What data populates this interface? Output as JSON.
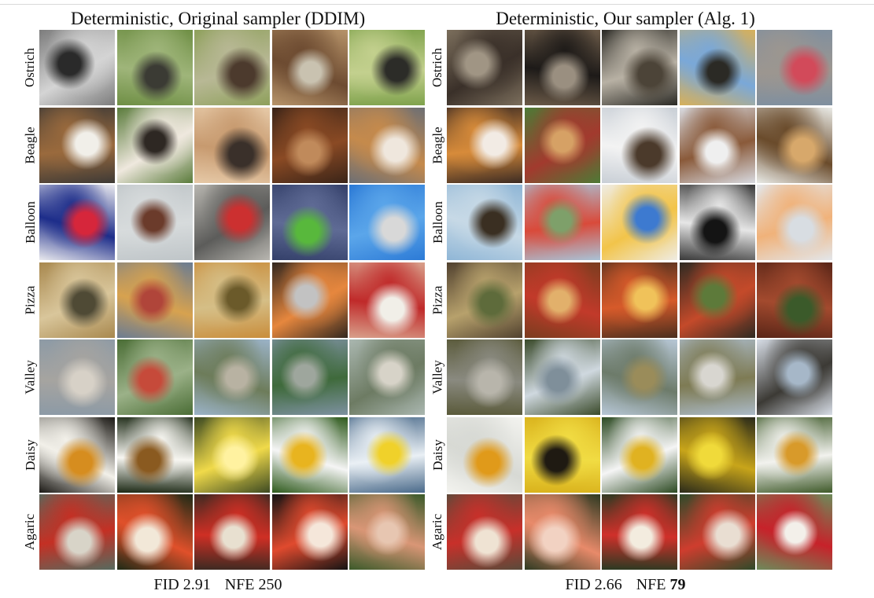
{
  "panels": [
    {
      "title": "Deterministic, Original sampler (DDIM)",
      "fid_label": "FID 2.91",
      "nfe_prefix": "NFE",
      "nfe_value": "250",
      "nfe_bold": false,
      "rows": [
        {
          "label": "Ostrich",
          "tiles": [
            [
              "#7c7c7c",
              "#d4d4d4",
              "#2a2a2a"
            ],
            [
              "#6f8f45",
              "#9fb57a",
              "#3b3b34"
            ],
            [
              "#8ea05b",
              "#b8b895",
              "#4c3a2d"
            ],
            [
              "#b7946a",
              "#6d4b31",
              "#c9c2b0"
            ],
            [
              "#7fa24c",
              "#c3d08e",
              "#2c2c28"
            ]
          ]
        },
        {
          "label": "Beagle",
          "tiles": [
            [
              "#3e3a36",
              "#9a6a3d",
              "#f1efe9"
            ],
            [
              "#5a7b3b",
              "#efe8de",
              "#2e2823"
            ],
            [
              "#e6c9a7",
              "#c79a6f",
              "#3a302a"
            ],
            [
              "#3a2418",
              "#8a4a24",
              "#c08a5b"
            ],
            [
              "#6d6f74",
              "#c58a4c",
              "#efe7dd"
            ]
          ]
        },
        {
          "label": "Balloon",
          "tiles": [
            [
              "#e9e9ee",
              "#1d2d8a",
              "#d6263b"
            ],
            [
              "#bfc5c8",
              "#d7dbdc",
              "#6b3b2b"
            ],
            [
              "#b8b6b0",
              "#5c5c5a",
              "#cc3030"
            ],
            [
              "#34406a",
              "#5f6b95",
              "#58b83c"
            ],
            [
              "#2c7ad6",
              "#5ba6ea",
              "#d8d8d8"
            ]
          ]
        },
        {
          "label": "Pizza",
          "tiles": [
            [
              "#a8884e",
              "#d9c69b",
              "#4f4a35"
            ],
            [
              "#6b7c92",
              "#d7a24f",
              "#b0453a"
            ],
            [
              "#c98d3b",
              "#d5be86",
              "#6b5a2a"
            ],
            [
              "#33271f",
              "#e6873e",
              "#c2c2c2"
            ],
            [
              "#d8a08b",
              "#c02a2a",
              "#f1efe8"
            ]
          ]
        },
        {
          "label": "Valley",
          "tiles": [
            [
              "#8c9aa6",
              "#a6a4a0",
              "#d7d1c7"
            ],
            [
              "#4a6d35",
              "#9bb188",
              "#c64a3a"
            ],
            [
              "#9bb3c8",
              "#6d7c5a",
              "#b8b2a2"
            ],
            [
              "#7d91a0",
              "#3f6a3b",
              "#9ea69d"
            ],
            [
              "#aab7b0",
              "#6d7b63",
              "#d7d3c8"
            ]
          ]
        },
        {
          "label": "Daisy",
          "tiles": [
            [
              "#1b1915",
              "#f2f0e9",
              "#d68d1f"
            ],
            [
              "#1d2a16",
              "#f7f6f1",
              "#8a5a20"
            ],
            [
              "#3d4a22",
              "#f0da4a",
              "#fff2a0"
            ],
            [
              "#2e5a1c",
              "#f5f5f5",
              "#e8b41f"
            ],
            [
              "#4a6a8a",
              "#eaf0f5",
              "#f0d12a"
            ]
          ]
        },
        {
          "label": "Agaric",
          "tiles": [
            [
              "#566a5e",
              "#c43024",
              "#d8d4c8"
            ],
            [
              "#1d2a16",
              "#e0502a",
              "#f2e8d8"
            ],
            [
              "#3b2a22",
              "#cf2f24",
              "#e8e0d0"
            ],
            [
              "#141414",
              "#e04a2e",
              "#f5e7da"
            ],
            [
              "#3b5a2a",
              "#d99676",
              "#e7c6b1"
            ]
          ]
        }
      ]
    },
    {
      "title": "Deterministic, Our sampler (Alg. 1)",
      "fid_label": "FID 2.66",
      "nfe_prefix": "NFE",
      "nfe_value": "79",
      "nfe_bold": true,
      "rows": [
        {
          "label": "Ostrich",
          "tiles": [
            [
              "#7b6e5c",
              "#3a3029",
              "#a09584"
            ],
            [
              "#6b5a48",
              "#1d1a18",
              "#9a8f80"
            ],
            [
              "#2b2a25",
              "#b8b1a4",
              "#4c4438"
            ],
            [
              "#d7b05a",
              "#7aa8d8",
              "#2b2a25"
            ],
            [
              "#7f8f9f",
              "#9c9690",
              "#d24a5a"
            ]
          ]
        },
        {
          "label": "Beagle",
          "tiles": [
            [
              "#3c2b23",
              "#d78b3a",
              "#f2ebe4"
            ],
            [
              "#4d7a36",
              "#a23a2e",
              "#d6a165"
            ],
            [
              "#c9cfd6",
              "#f3f3f3",
              "#4b3a2b"
            ],
            [
              "#d8dae0",
              "#8a5a3a",
              "#efefef"
            ],
            [
              "#e9eae6",
              "#6a4b2b",
              "#d7a86b"
            ]
          ]
        },
        {
          "label": "Balloon",
          "tiles": [
            [
              "#8fb6d6",
              "#c7d9e6",
              "#3a2f22"
            ],
            [
              "#a9c2d6",
              "#d94a3a",
              "#7ea06a"
            ],
            [
              "#efece3",
              "#f2c44a",
              "#3d7ad0"
            ],
            [
              "#3a3a3a",
              "#e6e6e6",
              "#141414"
            ],
            [
              "#e3e6ea",
              "#f0b27a",
              "#d8dde2"
            ]
          ]
        },
        {
          "label": "Pizza",
          "tiles": [
            [
              "#51412f",
              "#b7a16c",
              "#5e6b3b"
            ],
            [
              "#7b3d1f",
              "#c23a2a",
              "#e2b06b"
            ],
            [
              "#4b2e1e",
              "#d65a2a",
              "#f0c25a"
            ],
            [
              "#2f2a22",
              "#c44a2a",
              "#5d7a3a"
            ],
            [
              "#5a2618",
              "#a34a2e",
              "#3b5a2a"
            ]
          ]
        },
        {
          "label": "Valley",
          "tiles": [
            [
              "#5a5a3a",
              "#8a8a80",
              "#b8b5ab"
            ],
            [
              "#3a4a2a",
              "#cfd8df",
              "#7f8f9a"
            ],
            [
              "#b7c7d6",
              "#6d7b6a",
              "#9a8c5a"
            ],
            [
              "#aab9c6",
              "#7e7b54",
              "#d8d6d0"
            ],
            [
              "#d7dde6",
              "#3c3a35",
              "#a6b7c8"
            ]
          ]
        },
        {
          "label": "Daisy",
          "tiles": [
            [
              "#f3f3ef",
              "#d7d9d4",
              "#e09a1a"
            ],
            [
              "#d9b21c",
              "#f1dc43",
              "#1f1a12"
            ],
            [
              "#2c4a22",
              "#f5f5f5",
              "#e0b221"
            ],
            [
              "#2a2a1a",
              "#c8a51a",
              "#f0da3a"
            ],
            [
              "#3f5a2a",
              "#f2f2ee",
              "#d89a2a"
            ]
          ]
        },
        {
          "label": "Agaric",
          "tiles": [
            [
              "#5a4a3a",
              "#c8302a",
              "#efe3d3"
            ],
            [
              "#2e3a22",
              "#e88a6a",
              "#f2d2c2"
            ],
            [
              "#2a3a22",
              "#d0302a",
              "#f3ecdf"
            ],
            [
              "#2f4a2a",
              "#cf3d2e",
              "#e9ded2"
            ],
            [
              "#6d8a5a",
              "#c7222a",
              "#f3f0ea"
            ]
          ]
        }
      ]
    }
  ]
}
